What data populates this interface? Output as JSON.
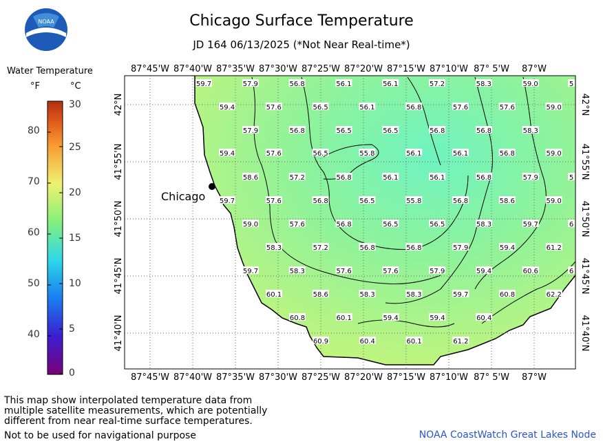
{
  "logo": {
    "text": "NOAA",
    "icon": "noaa-logo-icon"
  },
  "header": {
    "title": "Chicago Surface Temperature",
    "subtitle": "JD 164 06/13/2025 (*Not Near Real-time*)"
  },
  "legend": {
    "title": "Water Temperature",
    "unit_f": "°F",
    "unit_c": "°C",
    "fahrenheit_ticks": [
      "40",
      "50",
      "60",
      "70",
      "80"
    ],
    "celsius_ticks": [
      "0",
      "5",
      "10",
      "15",
      "20",
      "25",
      "30"
    ],
    "colors": [
      "#7a0078",
      "#3a1fd0",
      "#1a7ef0",
      "#2fd8e8",
      "#86f07a",
      "#f0f070",
      "#f79a30",
      "#e0561a",
      "#b03010"
    ]
  },
  "map": {
    "top_lon_labels": [
      "87°45'W",
      "87°40'W",
      "87°35'W",
      "87°30'W",
      "87°25'W",
      "87°20'W",
      "87°15'W",
      "87°10'W",
      "87° 5'W",
      "87°W"
    ],
    "bottom_lon_labels": [
      "87°45'W",
      "87°40'W",
      "87°35'W",
      "87°30'W",
      "87°25'W",
      "87°20'W",
      "87°15'W",
      "87°10'W",
      "87° 5'W",
      "87°W"
    ],
    "lat_labels": [
      "42°N",
      "41°55'N",
      "41°50'N",
      "41°45'N",
      "41°40'N"
    ],
    "city_label": "Chicago",
    "water_colors": {
      "cool": "#6ff3c0",
      "mid": "#8ff39a",
      "warm": "#c6f47a"
    },
    "readings": [
      [
        "59.7",
        "57.9",
        "56.8",
        "56.1",
        "56.1",
        "57.2",
        "58.3",
        "59.0",
        "5"
      ],
      [
        "59.4",
        "57.6",
        "56.5",
        "56.1",
        "56.8",
        "57.6",
        "57.6",
        "59.0"
      ],
      [
        "57.9",
        "56.8",
        "56.5",
        "56.5",
        "56.8",
        "56.8",
        "58.3"
      ],
      [
        "59.4",
        "57.6",
        "56.5",
        "55.8",
        "56.1",
        "56.1",
        "56.8",
        "59.0"
      ],
      [
        "58.6",
        "57.2",
        "56.8",
        "56.1",
        "56.1",
        "56.8",
        "57.9",
        "5"
      ],
      [
        "59.7",
        "57.6",
        "56.8",
        "56.5",
        "55.8",
        "56.8",
        "58.6",
        "59.0"
      ],
      [
        "59.0",
        "57.6",
        "56.8",
        "56.5",
        "56.5",
        "58.3",
        "59.7",
        "6"
      ],
      [
        "58.3",
        "57.2",
        "56.8",
        "56.8",
        "57.9",
        "59.4",
        "61.2"
      ],
      [
        "59.7",
        "58.3",
        "57.6",
        "57.6",
        "57.9",
        "59.4",
        "60.6",
        "6"
      ],
      [
        "60.1",
        "58.6",
        "58.3",
        "58.3",
        "59.7",
        "60.8",
        "62.2"
      ],
      [
        "60.8",
        "60.1",
        "59.4",
        "59.4",
        "60.4"
      ],
      [
        "60.9",
        "60.4",
        "60.1",
        "61.2"
      ]
    ]
  },
  "footer": {
    "disclaimer_lines": [
      "This map show interpolated temperature data from",
      "multiple satellite measurements, which are potentially",
      "different from near real-time surface temperatures."
    ],
    "nav_warning": "Not to be used for navigational purpose",
    "credit": "NOAA CoastWatch Great Lakes Node"
  }
}
